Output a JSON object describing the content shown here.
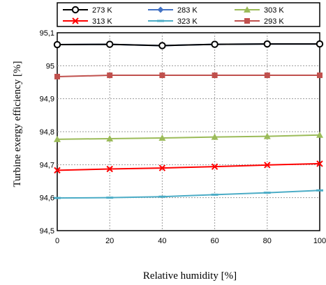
{
  "chart_data": {
    "type": "line",
    "title": "",
    "xlabel": "Relative humidity [%]",
    "ylabel": "Turbine  exergy efficiency  [%]",
    "x": [
      0,
      20,
      40,
      60,
      80,
      100
    ],
    "xticks": [
      "0",
      "20",
      "40",
      "60",
      "80",
      "100"
    ],
    "xlim": [
      0,
      100
    ],
    "ylim": [
      94.5,
      95.1
    ],
    "yticks": [
      "94,5",
      "94,6",
      "94,7",
      "94,8",
      "94,9",
      "95",
      "95,1"
    ],
    "grid": true,
    "legend_position": "top",
    "series": [
      {
        "name": "273 K",
        "color": "#000000",
        "marker": "circle",
        "values": [
          95.064,
          95.065,
          95.061,
          95.065,
          95.066,
          95.066
        ]
      },
      {
        "name": "283 K",
        "color": "#4472C4",
        "marker": "diamond",
        "values": [
          95.064,
          95.065,
          95.061,
          95.065,
          95.066,
          95.066
        ]
      },
      {
        "name": "303 K",
        "color": "#9BBB59",
        "marker": "triangle",
        "values": [
          94.777,
          94.779,
          94.781,
          94.784,
          94.786,
          94.79
        ]
      },
      {
        "name": "313 K",
        "color": "#FF0000",
        "marker": "x",
        "values": [
          94.683,
          94.687,
          94.69,
          94.694,
          94.699,
          94.703
        ]
      },
      {
        "name": "323 K",
        "color": "#4BACC6",
        "marker": "dash",
        "values": [
          94.599,
          94.6,
          94.603,
          94.609,
          94.615,
          94.622
        ]
      },
      {
        "name": "293 K",
        "color": "#C0504D",
        "marker": "square",
        "values": [
          94.967,
          94.971,
          94.971,
          94.971,
          94.971,
          94.971
        ]
      }
    ]
  }
}
